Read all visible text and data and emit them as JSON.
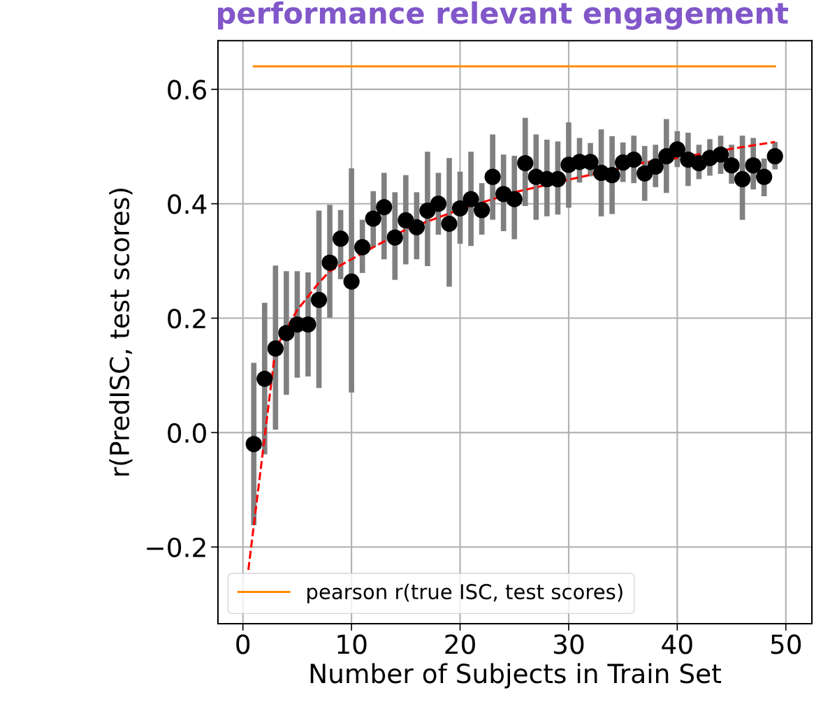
{
  "chart_data": {
    "type": "scatter",
    "title": "performance relevant engagement",
    "xlabel": "Number of Subjects in Train Set",
    "ylabel": "r(PredISC, test scores)",
    "xlim": [
      -2.3,
      52.4
    ],
    "ylim": [
      -0.334,
      0.685
    ],
    "xticks": [
      0,
      10,
      20,
      30,
      40,
      50
    ],
    "yticks": [
      {
        "value": -0.2,
        "label": "−0.2"
      },
      {
        "value": 0,
        "label": "0.0"
      },
      0.2,
      0.4,
      0.6
    ],
    "grid": true,
    "legend": "bottom left",
    "series": [
      {
        "color": "#000000",
        "marker": "circle",
        "x": [
          1,
          2,
          3,
          4,
          5,
          6,
          7,
          8,
          9,
          10,
          11,
          12,
          13,
          14,
          15,
          16,
          17,
          18,
          19,
          20,
          21,
          22,
          23,
          24,
          25,
          26,
          27,
          28,
          29,
          30,
          31,
          32,
          33,
          34,
          35,
          36,
          37,
          38,
          39,
          40,
          41,
          42,
          43,
          44,
          45,
          46,
          47,
          48,
          49
        ],
        "values": [
          -0.02,
          0.094,
          0.147,
          0.174,
          0.189,
          0.189,
          0.232,
          0.297,
          0.339,
          0.264,
          0.324,
          0.374,
          0.394,
          0.341,
          0.371,
          0.359,
          0.388,
          0.4,
          0.365,
          0.392,
          0.408,
          0.389,
          0.447,
          0.417,
          0.408,
          0.471,
          0.447,
          0.443,
          0.443,
          0.468,
          0.473,
          0.473,
          0.454,
          0.45,
          0.472,
          0.477,
          0.453,
          0.465,
          0.483,
          0.495,
          0.477,
          0.471,
          0.48,
          0.486,
          0.467,
          0.443,
          0.467,
          0.447,
          0.483
        ],
        "errors": [
          [
            -0.162,
            0.122
          ],
          [
            -0.038,
            0.227
          ],
          [
            0.005,
            0.292
          ],
          [
            0.066,
            0.282
          ],
          [
            0.096,
            0.282
          ],
          [
            0.098,
            0.28
          ],
          [
            0.078,
            0.388
          ],
          [
            0.201,
            0.398
          ],
          [
            0.268,
            0.389
          ],
          [
            0.07,
            0.462
          ],
          [
            0.279,
            0.372
          ],
          [
            0.324,
            0.422
          ],
          [
            0.303,
            0.454
          ],
          [
            0.267,
            0.42
          ],
          [
            0.294,
            0.45
          ],
          [
            0.303,
            0.42
          ],
          [
            0.291,
            0.491
          ],
          [
            0.346,
            0.454
          ],
          [
            0.255,
            0.48
          ],
          [
            0.33,
            0.456
          ],
          [
            0.326,
            0.491
          ],
          [
            0.346,
            0.436
          ],
          [
            0.372,
            0.521
          ],
          [
            0.352,
            0.486
          ],
          [
            0.338,
            0.484
          ],
          [
            0.396,
            0.55
          ],
          [
            0.372,
            0.521
          ],
          [
            0.378,
            0.512
          ],
          [
            0.381,
            0.509
          ],
          [
            0.393,
            0.542
          ],
          [
            0.437,
            0.515
          ],
          [
            0.448,
            0.506
          ],
          [
            0.378,
            0.53
          ],
          [
            0.382,
            0.518
          ],
          [
            0.438,
            0.507
          ],
          [
            0.436,
            0.519
          ],
          [
            0.405,
            0.501
          ],
          [
            0.429,
            0.503
          ],
          [
            0.419,
            0.548
          ],
          [
            0.464,
            0.527
          ],
          [
            0.431,
            0.524
          ],
          [
            0.443,
            0.503
          ],
          [
            0.449,
            0.513
          ],
          [
            0.452,
            0.519
          ],
          [
            0.435,
            0.503
          ],
          [
            0.372,
            0.519
          ],
          [
            0.425,
            0.515
          ],
          [
            0.413,
            0.479
          ],
          [
            0.46,
            0.508
          ]
        ]
      },
      {
        "type": "line",
        "color": "#ff0000",
        "line_style": "dashed",
        "marker": "none",
        "x": [
          0.5,
          3,
          5,
          7,
          8,
          10,
          15,
          20,
          25,
          30,
          37,
          40,
          45,
          49
        ],
        "values": [
          -0.24,
          0.147,
          0.214,
          0.262,
          0.282,
          0.303,
          0.355,
          0.39,
          0.42,
          0.442,
          0.472,
          0.48,
          0.496,
          0.508
        ]
      },
      {
        "type": "line",
        "name": "pearson r(true ISC, test scores)",
        "color": "#ff8c00",
        "line_style": "solid",
        "marker": "none",
        "x": [
          1,
          49
        ],
        "values": [
          0.64,
          0.64
        ]
      }
    ]
  }
}
